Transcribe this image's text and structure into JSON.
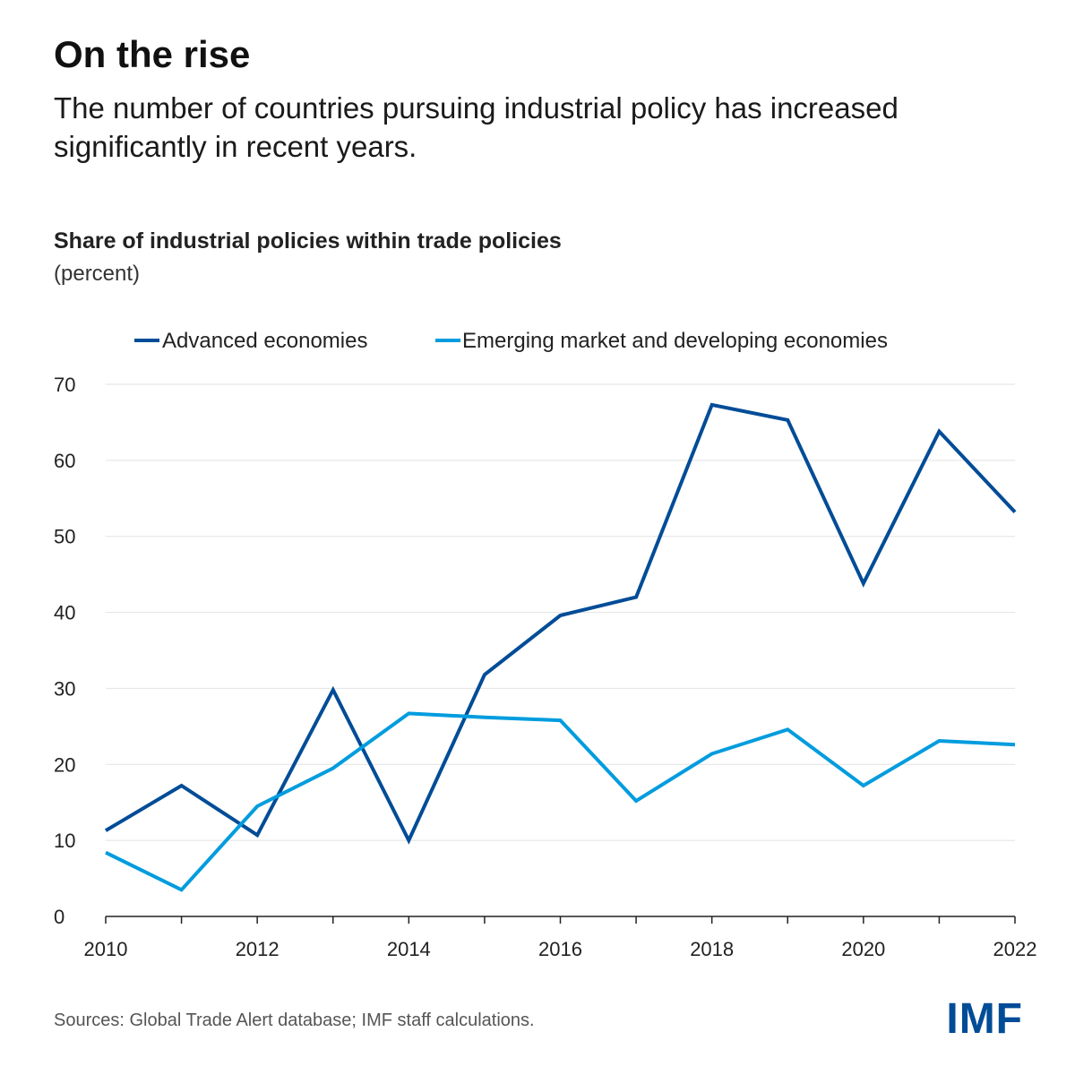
{
  "header": {
    "headline": "On the rise",
    "subtitle": "The number of countries pursuing industrial policy has increased significantly in recent years."
  },
  "footer": {
    "source": "Sources: Global Trade Alert database; IMF staff calculations.",
    "logo_text": "IMF"
  },
  "colors": {
    "advanced": "#004C97",
    "emerging": "#009CDE",
    "grid": "#e2e2e2",
    "axis": "#222222",
    "logo": "#004C97"
  },
  "chart_data": {
    "type": "line",
    "title": "Share of industrial policies within trade policies",
    "units_label": "(percent)",
    "xlabel": "",
    "ylabel": "",
    "x": [
      2010,
      2011,
      2012,
      2013,
      2014,
      2015,
      2016,
      2017,
      2018,
      2019,
      2020,
      2021,
      2022
    ],
    "x_tick_labels": [
      "2010",
      "2012",
      "2014",
      "2016",
      "2018",
      "2020",
      "2022"
    ],
    "x_tick_values": [
      2010,
      2012,
      2014,
      2016,
      2018,
      2020,
      2022
    ],
    "y_tick_labels": [
      "0",
      "10",
      "20",
      "30",
      "40",
      "50",
      "60",
      "70"
    ],
    "y_tick_values": [
      0,
      10,
      20,
      30,
      40,
      50,
      60,
      70
    ],
    "xlim": [
      2010,
      2022
    ],
    "ylim": [
      0,
      70
    ],
    "grid": true,
    "legend_position": "top",
    "series": [
      {
        "name": "Advanced economies",
        "color_key": "advanced",
        "values": [
          11.3,
          17.2,
          10.7,
          29.8,
          10.0,
          31.8,
          39.6,
          42.0,
          67.3,
          65.3,
          43.8,
          63.8,
          53.2
        ]
      },
      {
        "name": "Emerging market and developing economies",
        "color_key": "emerging",
        "values": [
          8.4,
          3.5,
          14.5,
          19.5,
          26.7,
          26.2,
          25.8,
          15.2,
          21.4,
          24.6,
          17.2,
          23.1,
          22.6
        ]
      }
    ]
  }
}
